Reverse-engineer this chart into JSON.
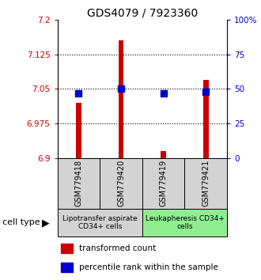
{
  "title": "GDS4079 / 7923360",
  "samples": [
    "GSM779418",
    "GSM779420",
    "GSM779419",
    "GSM779421"
  ],
  "red_values": [
    7.02,
    7.155,
    6.915,
    7.07
  ],
  "blue_values": [
    47,
    50,
    47,
    48
  ],
  "ymin": 6.9,
  "ymax": 7.2,
  "yticks": [
    6.9,
    6.975,
    7.05,
    7.125,
    7.2
  ],
  "ytick_labels": [
    "6.9",
    "6.975",
    "7.05",
    "7.125",
    "7.2"
  ],
  "right_yticks": [
    0,
    25,
    50,
    75,
    100
  ],
  "right_ylabels": [
    "0",
    "25",
    "50",
    "75",
    "100%"
  ],
  "groups": [
    {
      "label": "Lipotransfer aspirate\nCD34+ cells",
      "start": 0,
      "end": 2,
      "color": "#d3d3d3"
    },
    {
      "label": "Leukapheresis CD34+\ncells",
      "start": 2,
      "end": 4,
      "color": "#90ee90"
    }
  ],
  "bar_color": "#cc0000",
  "dot_color": "#0000cc",
  "bar_width": 0.12,
  "dot_size": 28,
  "title_fontsize": 10,
  "tick_fontsize": 7.5,
  "sample_fontsize": 7,
  "group_fontsize": 6.5,
  "legend_fontsize": 7.5,
  "celltype_fontsize": 8,
  "background": "#ffffff"
}
